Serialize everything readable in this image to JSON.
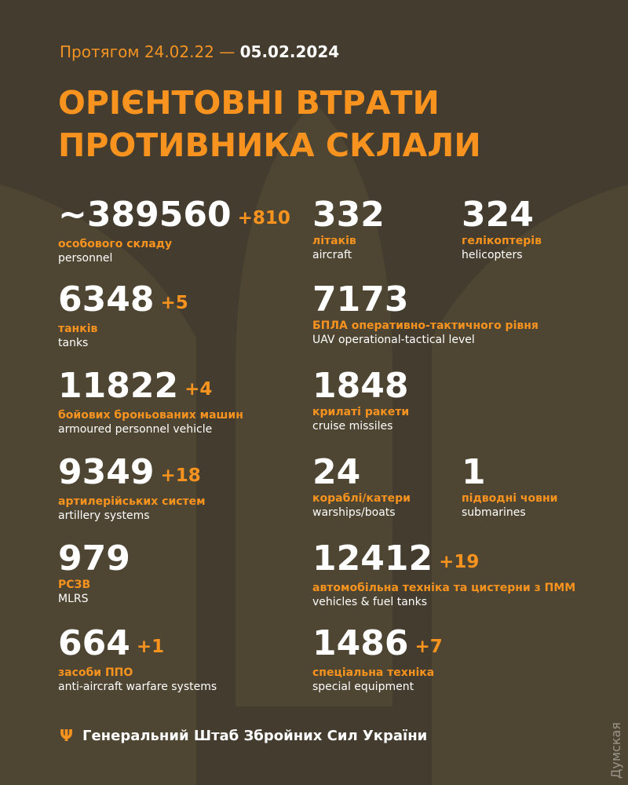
{
  "header": {
    "prefix": "Протягом 24.02.22 —",
    "date": "05.02.2024"
  },
  "title": {
    "line1": "ОРІЄНТОВНІ ВТРАТИ",
    "line2": "ПРОТИВНИКА СКЛАЛИ"
  },
  "stats": [
    {
      "value": "~389560",
      "delta": "+810",
      "ua": "особового складу",
      "en": "personnel"
    },
    {
      "value": "332",
      "delta": "",
      "ua": "літаків",
      "en": "aircraft"
    },
    {
      "value": "324",
      "delta": "",
      "ua": "гелікоптерів",
      "en": "helicopters"
    },
    {
      "value": "6348",
      "delta": "+5",
      "ua": "танків",
      "en": "tanks"
    },
    {
      "value": "7173",
      "delta": "",
      "ua": "БПЛА оперативно-тактичного рівня",
      "en": "UAV operational-tactical level"
    },
    {
      "value": "11822",
      "delta": "+4",
      "ua": "бойових броньованих машин",
      "en": "armoured personnel vehicle"
    },
    {
      "value": "1848",
      "delta": "",
      "ua": "крилаті ракети",
      "en": "cruise missiles"
    },
    {
      "value": "9349",
      "delta": "+18",
      "ua": "артилерійських систем",
      "en": "artillery systems"
    },
    {
      "value": "24",
      "delta": "",
      "ua": "кораблі/катери",
      "en": "warships/boats"
    },
    {
      "value": "1",
      "delta": "",
      "ua": "підводні човни",
      "en": "submarines"
    },
    {
      "value": "979",
      "delta": "",
      "ua": "РСЗВ",
      "en": "MLRS"
    },
    {
      "value": "12412",
      "delta": "+19",
      "ua": "автомобільна техніка та цистерни з ПММ",
      "en": "vehicles & fuel tanks"
    },
    {
      "value": "664",
      "delta": "+1",
      "ua": "засоби ППО",
      "en": "anti-aircraft warfare systems"
    },
    {
      "value": "1486",
      "delta": "+7",
      "ua": "спеціальна техніка",
      "en": "special equipment"
    }
  ],
  "footer": {
    "text": "Генеральний Штаб Збройних Сил України",
    "icon": "trident-icon",
    "watermark": "Думская"
  },
  "colors": {
    "background": "#443c2f",
    "accent": "#f7931e",
    "text": "#ffffff"
  }
}
